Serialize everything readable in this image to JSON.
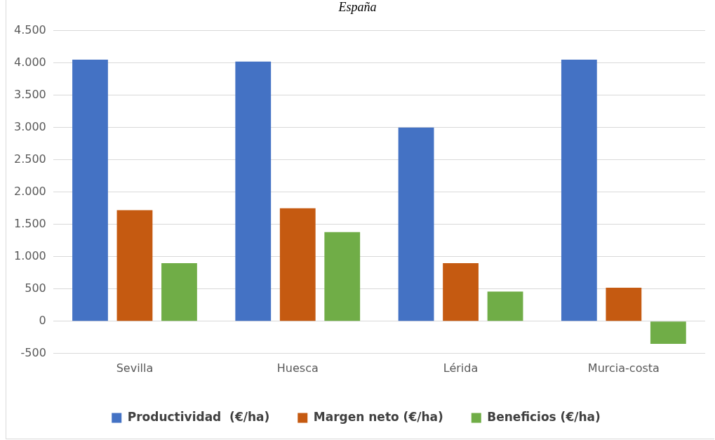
{
  "chart_data": {
    "type": "bar",
    "title": "España",
    "categories": [
      "Sevilla",
      "Huesca",
      "Lérida",
      "Murcia-costa"
    ],
    "series": [
      {
        "name": "Productividad  (€/ha)",
        "color": "#4472c4",
        "values": [
          4050,
          4020,
          3000,
          4050
        ]
      },
      {
        "name": "Margen neto (€/ha)",
        "color": "#c55a11",
        "values": [
          1720,
          1750,
          900,
          520
        ]
      },
      {
        "name": "Beneficios (€/ha)",
        "color": "#70ad47",
        "values": [
          900,
          1380,
          460,
          -350
        ]
      }
    ],
    "ylim": [
      -500,
      4500
    ],
    "yticks": [
      -500,
      0,
      500,
      {
        "value": 1000,
        "label": "1.000"
      },
      {
        "value": 1500,
        "label": "1.500"
      },
      {
        "value": 2000,
        "label": "2.000"
      },
      {
        "value": 2500,
        "label": "2.500"
      },
      {
        "value": 3000,
        "label": "3.000"
      },
      {
        "value": 3500,
        "label": "3.500"
      },
      {
        "value": 4000,
        "label": "4.000"
      },
      {
        "value": 4500,
        "label": "4.500"
      }
    ],
    "grid": "y",
    "legend": "bottom"
  }
}
